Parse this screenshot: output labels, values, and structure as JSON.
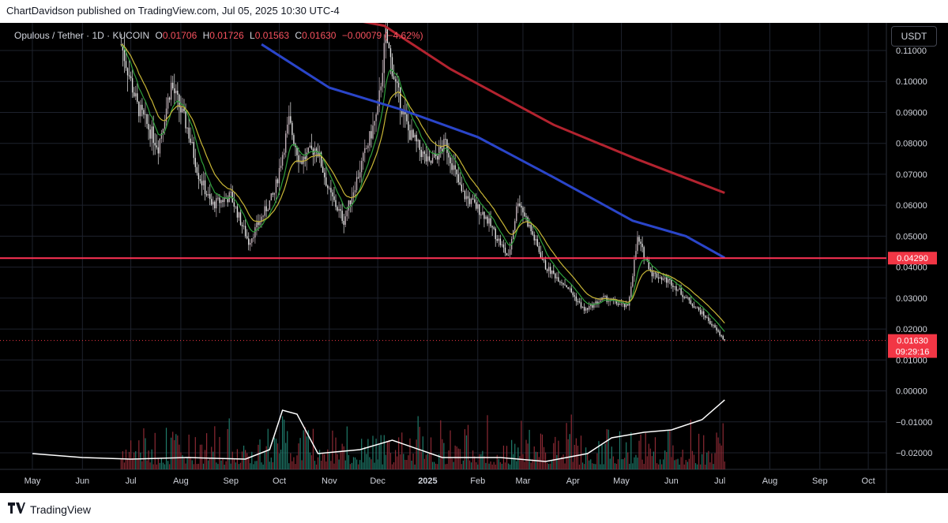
{
  "publish_line": "ChartDavidson published on TradingView.com, Jul 05, 2025 10:30 UTC-4",
  "legend": {
    "symbol": "Opulous / Tether · 1D · KUCOIN",
    "o_label": "O",
    "o_value": "0.01706",
    "h_label": "H",
    "h_value": "0.01726",
    "l_label": "L",
    "l_value": "0.01563",
    "c_label": "C",
    "c_value": "0.01630",
    "change": "−0.00079 (−4.62%)"
  },
  "unit_button": "USDT",
  "footer_brand": "TradingView",
  "colors": {
    "background": "#000000",
    "grid": "#1e222d",
    "up": "#c9b8c0",
    "down": "#f0f0f0",
    "ema_fast": "#2e9e3a",
    "ema_slow": "#c8b636",
    "ma_100": "#2a45c9",
    "ma_200": "#b3232f",
    "horizontal_line": "#ff3355",
    "price_label": "#f23645",
    "volume_up": "#1f7a6a",
    "volume_down": "#8c2a34",
    "volume_ma": "#ffffff"
  },
  "chart_data": {
    "type": "candlestick",
    "symbol": "Opulous / Tether",
    "interval": "1D",
    "exchange": "KUCOIN",
    "x_axis_labels": [
      "May",
      "Jun",
      "Jul",
      "Aug",
      "Sep",
      "Oct",
      "Nov",
      "Dec",
      "2025",
      "Feb",
      "Mar",
      "Apr",
      "May",
      "Jun",
      "Jul",
      "Aug",
      "Sep",
      "Oct"
    ],
    "y_axis_labels": [
      "0.11000",
      "0.10000",
      "0.09000",
      "0.08000",
      "0.07000",
      "0.06000",
      "0.05000",
      "0.04000",
      "0.03000",
      "0.02000",
      "0.01000",
      "0.00000",
      "−0.01000",
      "−0.02000"
    ],
    "y_range": [
      -0.0255,
      0.1155
    ],
    "horizontal_line": {
      "value": 0.0429,
      "label": "0.04290"
    },
    "last_price": {
      "value": 0.0163,
      "label": "0.01630",
      "countdown": "09:29:16"
    },
    "ohlc_last": {
      "open": 0.01706,
      "high": 0.01726,
      "low": 0.01563,
      "close": 0.0163
    },
    "price_path_approx": [
      [
        "2024-06-25",
        0.112
      ],
      [
        "2024-07-05",
        0.092
      ],
      [
        "2024-07-18",
        0.079
      ],
      [
        "2024-07-26",
        0.099
      ],
      [
        "2024-08-05",
        0.085
      ],
      [
        "2024-08-12",
        0.07
      ],
      [
        "2024-08-20",
        0.06
      ],
      [
        "2024-09-01",
        0.063
      ],
      [
        "2024-09-12",
        0.048
      ],
      [
        "2024-09-28",
        0.064
      ],
      [
        "2024-10-07",
        0.087
      ],
      [
        "2024-10-14",
        0.074
      ],
      [
        "2024-10-24",
        0.079
      ],
      [
        "2024-11-01",
        0.064
      ],
      [
        "2024-11-10",
        0.055
      ],
      [
        "2024-11-22",
        0.075
      ],
      [
        "2024-12-01",
        0.09
      ],
      [
        "2024-12-06",
        0.115
      ],
      [
        "2024-12-12",
        0.099
      ],
      [
        "2024-12-20",
        0.084
      ],
      [
        "2025-01-02",
        0.073
      ],
      [
        "2025-01-12",
        0.08
      ],
      [
        "2025-01-22",
        0.064
      ],
      [
        "2025-02-05",
        0.057
      ],
      [
        "2025-02-20",
        0.043
      ],
      [
        "2025-02-26",
        0.062
      ],
      [
        "2025-03-05",
        0.053
      ],
      [
        "2025-03-15",
        0.04
      ],
      [
        "2025-03-28",
        0.034
      ],
      [
        "2025-04-08",
        0.026
      ],
      [
        "2025-04-20",
        0.03
      ],
      [
        "2025-05-05",
        0.027
      ],
      [
        "2025-05-11",
        0.049
      ],
      [
        "2025-05-20",
        0.038
      ],
      [
        "2025-06-01",
        0.035
      ],
      [
        "2025-06-12",
        0.029
      ],
      [
        "2025-06-22",
        0.024
      ],
      [
        "2025-07-04",
        0.0163
      ]
    ],
    "ma_200_approx": [
      [
        "2024-09-25",
        0.125
      ],
      [
        "2024-12-05",
        0.118
      ],
      [
        "2025-01-15",
        0.104
      ],
      [
        "2025-03-20",
        0.086
      ],
      [
        "2025-05-10",
        0.075
      ],
      [
        "2025-07-04",
        0.064
      ]
    ],
    "ma_100_approx": [
      [
        "2024-09-20",
        0.112
      ],
      [
        "2024-11-01",
        0.098
      ],
      [
        "2024-12-15",
        0.091
      ],
      [
        "2025-02-01",
        0.082
      ],
      [
        "2025-03-20",
        0.069
      ],
      [
        "2025-05-08",
        0.055
      ],
      [
        "2025-06-10",
        0.05
      ],
      [
        "2025-07-04",
        0.043
      ]
    ]
  }
}
